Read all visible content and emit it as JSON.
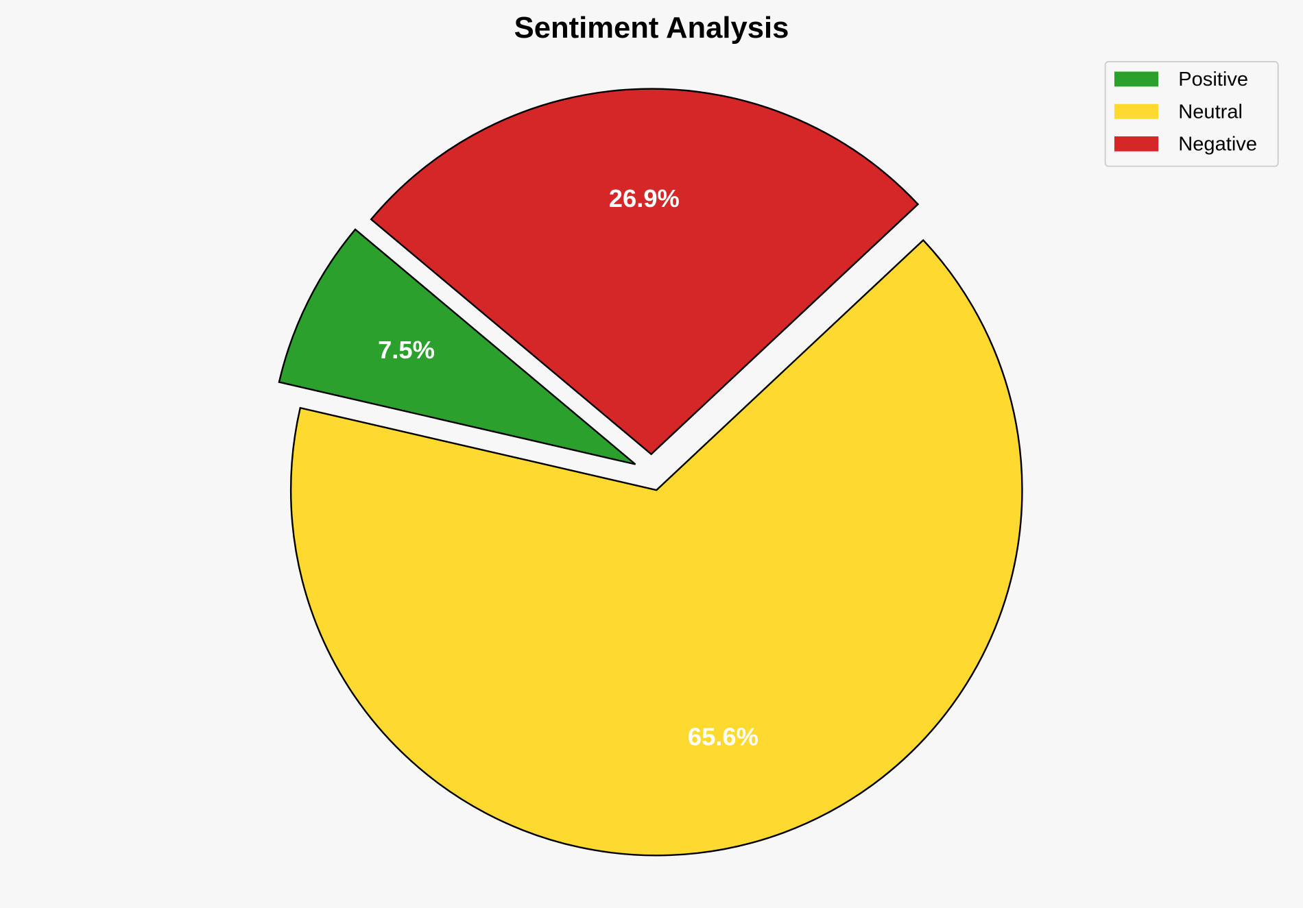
{
  "chart_data": {
    "type": "pie",
    "title": "Sentiment Analysis",
    "labels": [
      "Positive",
      "Neutral",
      "Negative"
    ],
    "values": [
      7.5,
      65.6,
      26.9
    ],
    "value_labels": [
      "7.5%",
      "65.6%",
      "26.9%"
    ],
    "colors": [
      "#2ca02c",
      "#fed92f",
      "#d62728"
    ],
    "explode": [
      0.05,
      0.05,
      0.05
    ],
    "start_angle": 140,
    "direction": "counterclockwise",
    "legend_position": "top-right",
    "background": "#f7f7f7"
  }
}
